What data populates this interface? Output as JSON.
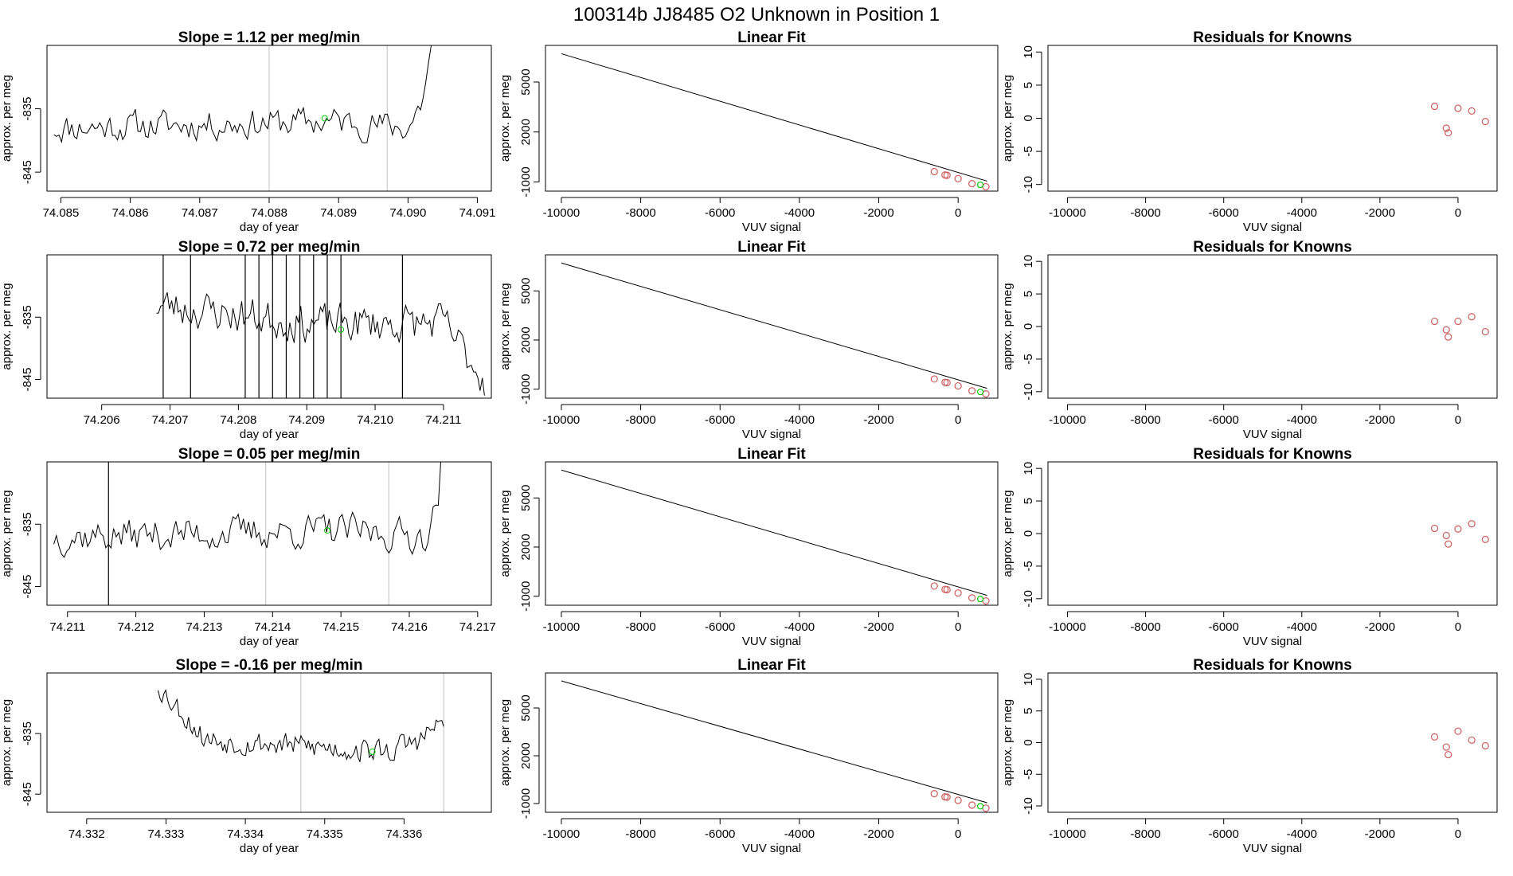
{
  "suptitle": "100314b     JJ8485   O2 Unknown in Position  1",
  "colors": {
    "series": "#000000",
    "known_points": "#cd5c5c",
    "highlight_points": "#00cc00",
    "marker_lines": "#bfbfbf"
  },
  "chart_data": [
    {
      "type": "line",
      "row": 1,
      "title": "Slope =  1.12  per meg/min",
      "xlabel": "day of year",
      "ylabel": "approx. per meg",
      "xlim": [
        74.0848,
        74.0912
      ],
      "ylim": [
        -848,
        -825
      ],
      "xticks": [
        74.085,
        74.086,
        74.087,
        74.088,
        74.089,
        74.09,
        74.091
      ],
      "xtick_labels": [
        "74.085",
        "74.086",
        "74.087",
        "74.088",
        "74.089",
        "74.090",
        "74.091"
      ],
      "yticks": [
        -845,
        -835
      ],
      "ytick_labels": [
        "-845",
        "-835"
      ],
      "x_start": 74.0849,
      "x_end": 74.0904,
      "noise_seed": 11,
      "wiggle": 3.5,
      "trend": [
        [
          74.0849,
          -838
        ],
        [
          74.089,
          -837
        ],
        [
          74.09,
          -838
        ],
        [
          74.0902,
          -834
        ],
        [
          74.0904,
          -822
        ]
      ],
      "vlines": [
        74.088,
        74.0897
      ],
      "highlight_point": [
        74.0888,
        -836.5
      ]
    },
    {
      "type": "line",
      "row": 2,
      "title": "Slope =  0.72  per meg/min",
      "xlabel": "day of year",
      "ylabel": "approx. per meg",
      "xlim": [
        74.2052,
        74.2117
      ],
      "ylim": [
        -848,
        -825
      ],
      "xticks": [
        74.206,
        74.207,
        74.208,
        74.209,
        74.21,
        74.211
      ],
      "xtick_labels": [
        "74.206",
        "74.207",
        "74.208",
        "74.209",
        "74.210",
        "74.211"
      ],
      "yticks": [
        -845,
        -835
      ],
      "ytick_labels": [
        "-845",
        "-835"
      ],
      "x_start": 74.2068,
      "x_end": 74.2116,
      "noise_seed": 23,
      "wiggle": 4.5,
      "trend": [
        [
          74.2068,
          -833
        ],
        [
          74.209,
          -836
        ],
        [
          74.211,
          -836
        ],
        [
          74.2116,
          -845
        ]
      ],
      "spikes": [
        74.2069,
        74.2073,
        74.2081,
        74.2083,
        74.2085,
        74.2087,
        74.2089,
        74.2091,
        74.2093,
        74.2095,
        74.2104
      ],
      "vlines": [],
      "highlight_point": [
        74.2095,
        -837
      ]
    },
    {
      "type": "line",
      "row": 3,
      "title": "Slope =  0.05  per meg/min",
      "xlabel": "day of year",
      "ylabel": "approx. per meg",
      "xlim": [
        74.2107,
        74.2172
      ],
      "ylim": [
        -848,
        -825
      ],
      "xticks": [
        74.211,
        74.212,
        74.213,
        74.214,
        74.215,
        74.216,
        74.217
      ],
      "xtick_labels": [
        "74.211",
        "74.212",
        "74.213",
        "74.214",
        "74.215",
        "74.216",
        "74.217"
      ],
      "yticks": [
        -845,
        -835
      ],
      "ytick_labels": [
        "-845",
        "-835"
      ],
      "x_start": 74.2108,
      "x_end": 74.2165,
      "noise_seed": 37,
      "wiggle": 4,
      "trend": [
        [
          74.2108,
          -837
        ],
        [
          74.215,
          -836
        ],
        [
          74.2162,
          -837
        ],
        [
          74.2164,
          -833
        ],
        [
          74.2165,
          -822
        ]
      ],
      "spikes": [
        74.2116
      ],
      "vlines": [
        74.2139,
        74.2157
      ],
      "highlight_point": [
        74.2148,
        -836
      ]
    },
    {
      "type": "line",
      "row": 4,
      "title": "Slope =  -0.16  per meg/min",
      "xlabel": "day of year",
      "ylabel": "approx. per meg",
      "xlim": [
        74.3315,
        74.3371
      ],
      "ylim": [
        -848,
        -825
      ],
      "xticks": [
        74.332,
        74.333,
        74.334,
        74.335,
        74.336
      ],
      "xtick_labels": [
        "74.332",
        "74.333",
        "74.334",
        "74.335",
        "74.336"
      ],
      "yticks": [
        -845,
        -835
      ],
      "ytick_labels": [
        "-845",
        "-835"
      ],
      "x_start": 74.3329,
      "x_end": 74.3365,
      "noise_seed": 53,
      "wiggle": 3,
      "trend": [
        [
          74.3329,
          -827
        ],
        [
          74.3331,
          -830
        ],
        [
          74.3335,
          -836
        ],
        [
          74.3358,
          -838
        ],
        [
          74.3362,
          -836
        ],
        [
          74.3365,
          -833
        ]
      ],
      "vlines": [
        74.3347,
        74.3365
      ],
      "highlight_point": [
        74.3356,
        -838
      ]
    },
    {
      "type": "scatter",
      "row": 1,
      "title": "Linear Fit",
      "xlabel": "VUV signal",
      "ylabel": "approx. per meg",
      "xlim": [
        -10400,
        1000
      ],
      "ylim": [
        -1550,
        7200
      ],
      "xticks": [
        -10000,
        -8000,
        -6000,
        -4000,
        -2000,
        0
      ],
      "xtick_labels": [
        "-10000",
        "-8000",
        "-6000",
        "-4000",
        "-2000",
        "0"
      ],
      "yticks": [
        -1000,
        2000,
        5000
      ],
      "ytick_labels": [
        "-1000",
        "2000",
        "5000"
      ],
      "fit_line": [
        [
          -10000,
          6700
        ],
        [
          730,
          -950
        ]
      ],
      "known_points": [
        [
          -600,
          -380
        ],
        [
          -330,
          -580
        ],
        [
          -280,
          -600
        ],
        [
          0,
          -800
        ],
        [
          350,
          -1100
        ],
        [
          700,
          -1290
        ]
      ],
      "unknown_points": [
        [
          560,
          -1170
        ]
      ]
    },
    {
      "type": "scatter",
      "row": 2,
      "title": "Linear Fit",
      "xlabel": "VUV signal",
      "ylabel": "approx. per meg",
      "xlim": [
        -10400,
        1000
      ],
      "ylim": [
        -1550,
        7200
      ],
      "xticks": [
        -10000,
        -8000,
        -6000,
        -4000,
        -2000,
        0
      ],
      "xtick_labels": [
        "-10000",
        "-8000",
        "-6000",
        "-4000",
        "-2000",
        "0"
      ],
      "yticks": [
        -1000,
        2000,
        5000
      ],
      "ytick_labels": [
        "-1000",
        "2000",
        "5000"
      ],
      "fit_line": [
        [
          -10000,
          6700
        ],
        [
          730,
          -950
        ]
      ],
      "known_points": [
        [
          -600,
          -380
        ],
        [
          -330,
          -580
        ],
        [
          -280,
          -600
        ],
        [
          0,
          -800
        ],
        [
          350,
          -1100
        ],
        [
          700,
          -1290
        ]
      ],
      "unknown_points": [
        [
          560,
          -1170
        ]
      ]
    },
    {
      "type": "scatter",
      "row": 3,
      "title": "Linear Fit",
      "xlabel": "VUV signal",
      "ylabel": "approx. per meg",
      "xlim": [
        -10400,
        1000
      ],
      "ylim": [
        -1550,
        7200
      ],
      "xticks": [
        -10000,
        -8000,
        -6000,
        -4000,
        -2000,
        0
      ],
      "xtick_labels": [
        "-10000",
        "-8000",
        "-6000",
        "-4000",
        "-2000",
        "0"
      ],
      "yticks": [
        -1000,
        2000,
        5000
      ],
      "ytick_labels": [
        "-1000",
        "2000",
        "5000"
      ],
      "fit_line": [
        [
          -10000,
          6700
        ],
        [
          730,
          -950
        ]
      ],
      "known_points": [
        [
          -600,
          -380
        ],
        [
          -330,
          -580
        ],
        [
          -280,
          -600
        ],
        [
          0,
          -800
        ],
        [
          350,
          -1100
        ],
        [
          700,
          -1290
        ]
      ],
      "unknown_points": [
        [
          560,
          -1170
        ]
      ]
    },
    {
      "type": "scatter",
      "row": 4,
      "title": "Linear Fit",
      "xlabel": "VUV signal",
      "ylabel": "approx. per meg",
      "xlim": [
        -10400,
        1000
      ],
      "ylim": [
        -1550,
        7200
      ],
      "xticks": [
        -10000,
        -8000,
        -6000,
        -4000,
        -2000,
        0
      ],
      "xtick_labels": [
        "-10000",
        "-8000",
        "-6000",
        "-4000",
        "-2000",
        "0"
      ],
      "yticks": [
        -1000,
        2000,
        5000
      ],
      "ytick_labels": [
        "-1000",
        "2000",
        "5000"
      ],
      "fit_line": [
        [
          -10000,
          6700
        ],
        [
          730,
          -950
        ]
      ],
      "known_points": [
        [
          -600,
          -380
        ],
        [
          -330,
          -580
        ],
        [
          -280,
          -600
        ],
        [
          0,
          -800
        ],
        [
          350,
          -1100
        ],
        [
          700,
          -1290
        ]
      ],
      "unknown_points": [
        [
          560,
          -1170
        ]
      ]
    },
    {
      "type": "scatter",
      "row": 1,
      "title": "Residuals for Knowns",
      "xlabel": "VUV signal",
      "ylabel": "approx. per meg",
      "xlim": [
        -10500,
        1000
      ],
      "ylim": [
        -11,
        11
      ],
      "xticks": [
        -10000,
        -8000,
        -6000,
        -4000,
        -2000,
        0
      ],
      "xtick_labels": [
        "-10000",
        "-8000",
        "-6000",
        "-4000",
        "-2000",
        "0"
      ],
      "yticks": [
        -10,
        -5,
        0,
        5,
        10
      ],
      "ytick_labels": [
        "-10",
        "-5",
        "0",
        "5",
        "10"
      ],
      "known_points": [
        [
          -600,
          1.8
        ],
        [
          -300,
          -1.5
        ],
        [
          -250,
          -2.2
        ],
        [
          0,
          1.5
        ],
        [
          350,
          1.1
        ],
        [
          700,
          -0.5
        ]
      ]
    },
    {
      "type": "scatter",
      "row": 2,
      "title": "Residuals for Knowns",
      "xlabel": "VUV signal",
      "ylabel": "approx. per meg",
      "xlim": [
        -10500,
        1000
      ],
      "ylim": [
        -11,
        11
      ],
      "xticks": [
        -10000,
        -8000,
        -6000,
        -4000,
        -2000,
        0
      ],
      "xtick_labels": [
        "-10000",
        "-8000",
        "-6000",
        "-4000",
        "-2000",
        "0"
      ],
      "yticks": [
        -10,
        -5,
        0,
        5,
        10
      ],
      "ytick_labels": [
        "-10",
        "-5",
        "0",
        "5",
        "10"
      ],
      "known_points": [
        [
          -600,
          0.8
        ],
        [
          -300,
          -0.5
        ],
        [
          -250,
          -1.6
        ],
        [
          0,
          0.8
        ],
        [
          350,
          1.5
        ],
        [
          700,
          -0.8
        ]
      ]
    },
    {
      "type": "scatter",
      "row": 3,
      "title": "Residuals for Knowns",
      "xlabel": "VUV signal",
      "ylabel": "approx. per meg",
      "xlim": [
        -10500,
        1000
      ],
      "ylim": [
        -11,
        11
      ],
      "xticks": [
        -10000,
        -8000,
        -6000,
        -4000,
        -2000,
        0
      ],
      "xtick_labels": [
        "-10000",
        "-8000",
        "-6000",
        "-4000",
        "-2000",
        "0"
      ],
      "yticks": [
        -10,
        -5,
        0,
        5,
        10
      ],
      "ytick_labels": [
        "-10",
        "-5",
        "0",
        "5",
        "10"
      ],
      "known_points": [
        [
          -600,
          0.8
        ],
        [
          -300,
          -0.3
        ],
        [
          -250,
          -1.6
        ],
        [
          0,
          0.7
        ],
        [
          350,
          1.5
        ],
        [
          700,
          -0.9
        ]
      ]
    },
    {
      "type": "scatter",
      "row": 4,
      "title": "Residuals for Knowns",
      "xlabel": "VUV signal",
      "ylabel": "approx. per meg",
      "xlim": [
        -10500,
        1000
      ],
      "ylim": [
        -11,
        11
      ],
      "xticks": [
        -10000,
        -8000,
        -6000,
        -4000,
        -2000,
        0
      ],
      "xtick_labels": [
        "-10000",
        "-8000",
        "-6000",
        "-4000",
        "-2000",
        "0"
      ],
      "yticks": [
        -10,
        -5,
        0,
        5,
        10
      ],
      "ytick_labels": [
        "-10",
        "-5",
        "0",
        "5",
        "10"
      ],
      "known_points": [
        [
          -600,
          0.9
        ],
        [
          -300,
          -0.7
        ],
        [
          -250,
          -1.9
        ],
        [
          0,
          1.8
        ],
        [
          350,
          0.4
        ],
        [
          700,
          -0.5
        ]
      ]
    }
  ]
}
